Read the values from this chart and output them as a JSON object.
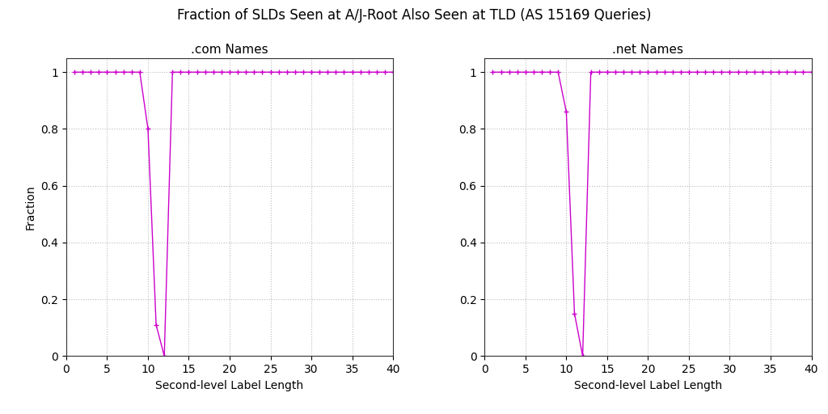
{
  "title": "Fraction of SLDs Seen at A/J-Root Also Seen at TLD (AS 15169 Queries)",
  "left_title": ".com Names",
  "right_title": ".net Names",
  "xlabel": "Second-level Label Length",
  "ylabel": "Fraction",
  "line_color": "#cc00cc",
  "background_color": "#ffffff",
  "grid_color": "#bbbbbb",
  "xlim": [
    0,
    40
  ],
  "ylim": [
    0,
    1.05
  ],
  "xticks": [
    0,
    5,
    10,
    15,
    20,
    25,
    30,
    35,
    40
  ],
  "yticks": [
    0,
    0.2,
    0.4,
    0.6,
    0.8,
    1.0
  ],
  "com_x": [
    1,
    2,
    3,
    4,
    5,
    6,
    7,
    8,
    9,
    10,
    11,
    12,
    13,
    14,
    15,
    16,
    17,
    18,
    19,
    20,
    21,
    22,
    23,
    24,
    25,
    26,
    27,
    28,
    29,
    30,
    31,
    32,
    33,
    34,
    35,
    36,
    37,
    38,
    39,
    40
  ],
  "com_y": [
    1.0,
    1.0,
    1.0,
    1.0,
    1.0,
    1.0,
    1.0,
    1.0,
    1.0,
    0.8,
    0.11,
    0.0,
    1.0,
    1.0,
    1.0,
    1.0,
    1.0,
    1.0,
    1.0,
    1.0,
    1.0,
    1.0,
    1.0,
    1.0,
    1.0,
    1.0,
    1.0,
    1.0,
    1.0,
    1.0,
    1.0,
    1.0,
    1.0,
    1.0,
    1.0,
    1.0,
    1.0,
    1.0,
    1.0,
    1.0
  ],
  "net_x": [
    1,
    2,
    3,
    4,
    5,
    6,
    7,
    8,
    9,
    10,
    11,
    12,
    13,
    14,
    15,
    16,
    17,
    18,
    19,
    20,
    21,
    22,
    23,
    24,
    25,
    26,
    27,
    28,
    29,
    30,
    31,
    32,
    33,
    34,
    35,
    36,
    37,
    38,
    39,
    40
  ],
  "net_y": [
    1.0,
    1.0,
    1.0,
    1.0,
    1.0,
    1.0,
    1.0,
    1.0,
    1.0,
    0.86,
    0.15,
    0.0,
    1.0,
    1.0,
    1.0,
    1.0,
    1.0,
    1.0,
    1.0,
    1.0,
    1.0,
    1.0,
    1.0,
    1.0,
    1.0,
    1.0,
    1.0,
    1.0,
    1.0,
    1.0,
    1.0,
    1.0,
    1.0,
    1.0,
    1.0,
    1.0,
    1.0,
    1.0,
    1.0,
    1.0
  ],
  "title_fontsize": 12,
  "subtitle_fontsize": 11,
  "axis_label_fontsize": 10,
  "tick_fontsize": 10
}
